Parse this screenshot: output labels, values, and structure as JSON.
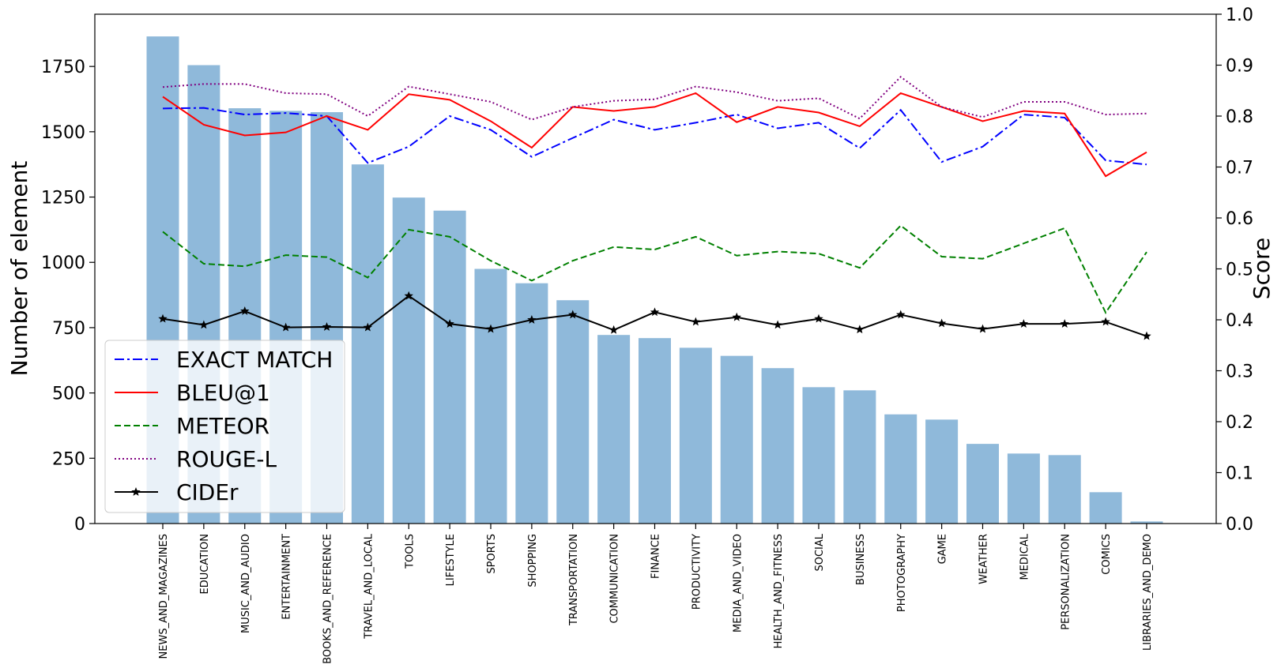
{
  "chart_data": {
    "type": "bar",
    "title": "",
    "xlabel": "",
    "ylabel": "Number of element",
    "y2label": "Score",
    "ylim": [
      0,
      1950
    ],
    "y2lim": [
      0.0,
      1.0
    ],
    "yticks": [
      "0",
      "250",
      "500",
      "750",
      "1000",
      "1250",
      "1500",
      "1750"
    ],
    "y2ticks": [
      "0.0",
      "0.1",
      "0.2",
      "0.3",
      "0.4",
      "0.5",
      "0.6",
      "0.7",
      "0.8",
      "0.9",
      "1.0"
    ],
    "grid": false,
    "legend_position": "lower-left",
    "bar_color": "#8fb9da",
    "categories": [
      "NEWS_AND_MAGAZINES",
      "EDUCATION",
      "MUSIC_AND_AUDIO",
      "ENTERTAINMENT",
      "BOOKS_AND_REFERENCE",
      "TRAVEL_AND_LOCAL",
      "TOOLS",
      "LIFESTYLE",
      "SPORTS",
      "SHOPPING",
      "TRANSPORTATION",
      "COMMUNICATION",
      "FINANCE",
      "PRODUCTIVITY",
      "MEDIA_AND_VIDEO",
      "HEALTH_AND_FITNESS",
      "SOCIAL",
      "BUSINESS",
      "PHOTOGRAPHY",
      "GAME",
      "WEATHER",
      "MEDICAL",
      "PERSONALIZATION",
      "COMICS",
      "LIBRARIES_AND_DEMO"
    ],
    "values": [
      1865,
      1755,
      1590,
      1580,
      1575,
      1375,
      1248,
      1198,
      975,
      920,
      855,
      722,
      710,
      673,
      642,
      595,
      522,
      510,
      418,
      398,
      305,
      268,
      262,
      120,
      8
    ],
    "series": [
      {
        "name": "EXACT MATCH",
        "color": "#0000ff",
        "dash": "12,4,3,4",
        "marker": "",
        "values": [
          0.815,
          0.816,
          0.803,
          0.806,
          0.8,
          0.708,
          0.74,
          0.8,
          0.773,
          0.72,
          0.757,
          0.793,
          0.773,
          0.787,
          0.803,
          0.776,
          0.787,
          0.737,
          0.812,
          0.71,
          0.74,
          0.803,
          0.797,
          0.713,
          0.705
        ]
      },
      {
        "name": "BLEU@1",
        "color": "#ff0000",
        "dash": "",
        "marker": "",
        "values": [
          0.838,
          0.783,
          0.762,
          0.768,
          0.8,
          0.773,
          0.843,
          0.832,
          0.79,
          0.738,
          0.818,
          0.81,
          0.818,
          0.845,
          0.788,
          0.818,
          0.807,
          0.78,
          0.845,
          0.818,
          0.79,
          0.81,
          0.805,
          0.682,
          0.729
        ]
      },
      {
        "name": "METEOR",
        "color": "#008000",
        "dash": "8,4",
        "marker": "",
        "values": [
          0.573,
          0.51,
          0.505,
          0.527,
          0.523,
          0.483,
          0.577,
          0.563,
          0.516,
          0.477,
          0.516,
          0.543,
          0.538,
          0.563,
          0.526,
          0.534,
          0.53,
          0.502,
          0.585,
          0.524,
          0.52,
          0.55,
          0.58,
          0.414,
          0.533
        ]
      },
      {
        "name": "ROUGE-L",
        "color": "#800080",
        "dash": "2,3",
        "marker": "",
        "values": [
          0.857,
          0.863,
          0.863,
          0.845,
          0.843,
          0.8,
          0.858,
          0.843,
          0.828,
          0.793,
          0.818,
          0.83,
          0.833,
          0.858,
          0.847,
          0.83,
          0.835,
          0.795,
          0.877,
          0.818,
          0.798,
          0.828,
          0.828,
          0.803,
          0.805
        ]
      },
      {
        "name": "CIDEr",
        "color": "#000000",
        "dash": "",
        "marker": "star",
        "values": [
          0.402,
          0.39,
          0.417,
          0.385,
          0.386,
          0.385,
          0.447,
          0.392,
          0.382,
          0.4,
          0.41,
          0.38,
          0.415,
          0.396,
          0.405,
          0.39,
          0.402,
          0.381,
          0.41,
          0.393,
          0.382,
          0.392,
          0.392,
          0.396,
          0.368
        ]
      }
    ]
  }
}
